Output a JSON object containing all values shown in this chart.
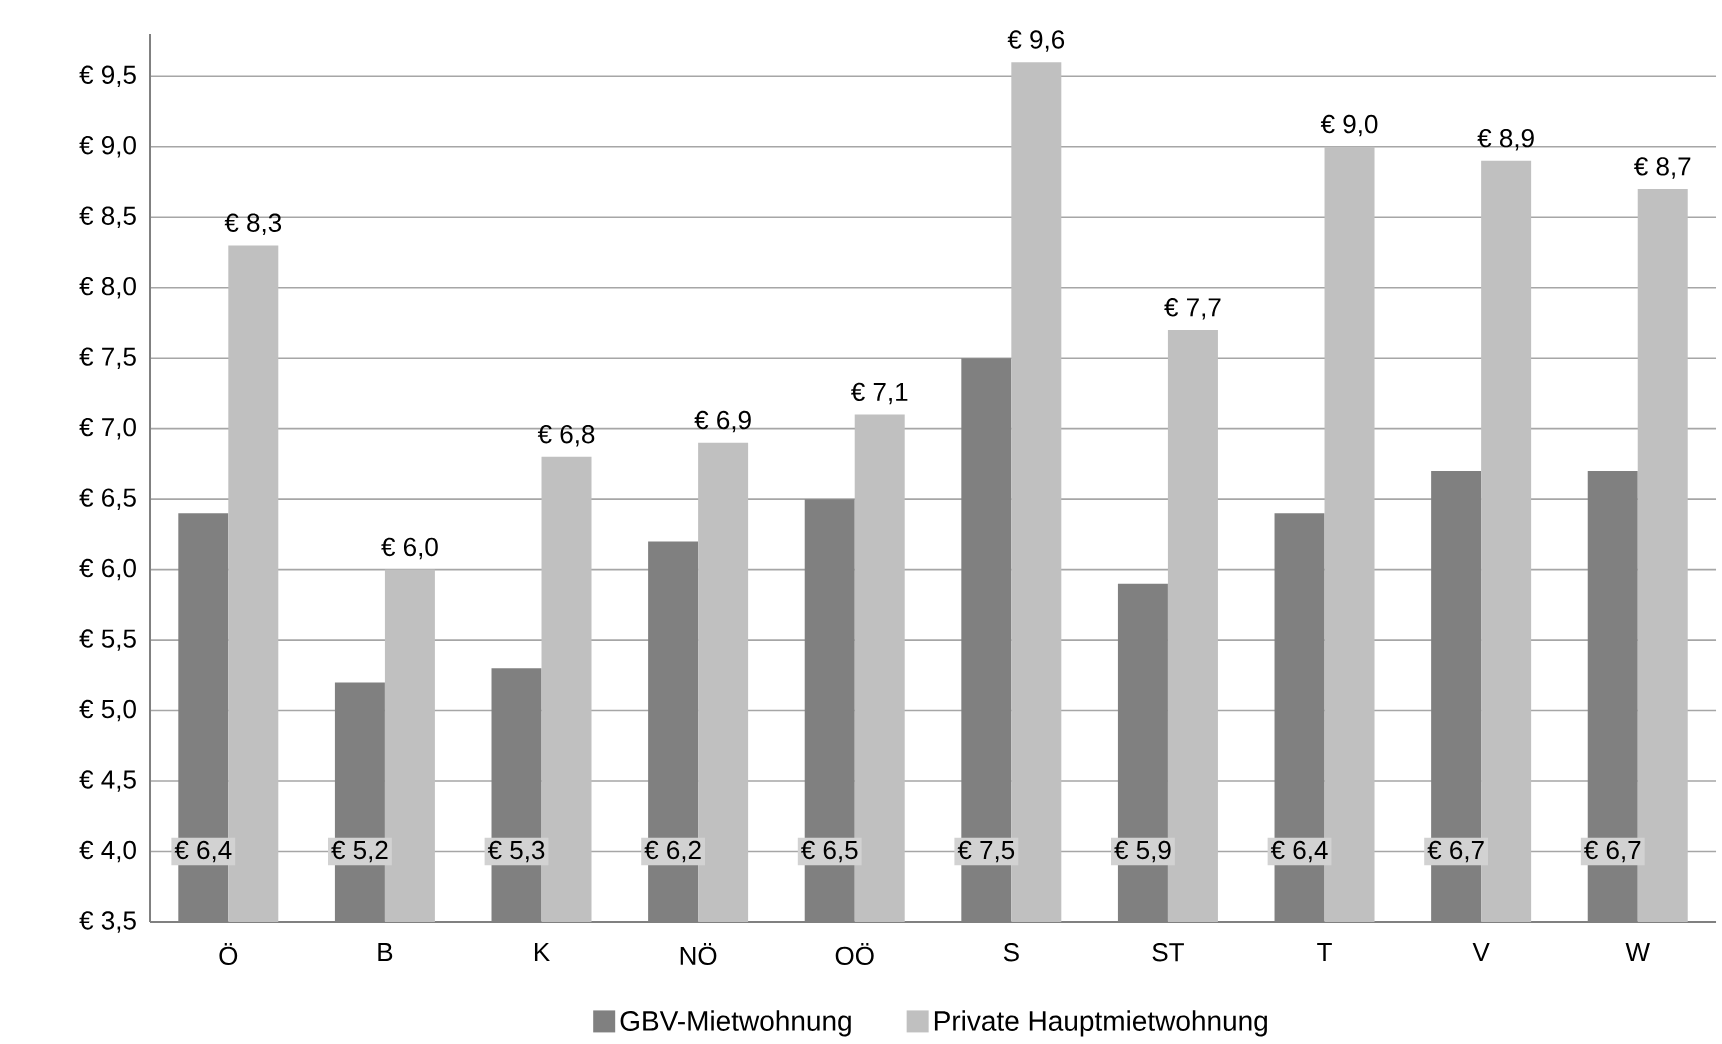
{
  "chart_data": {
    "type": "bar",
    "categories": [
      "Ö",
      "B",
      "K",
      "NÖ",
      "OÖ",
      "S",
      "ST",
      "T",
      "V",
      "W"
    ],
    "series": [
      {
        "name": "GBV-Mietwohnung",
        "color": "#808080",
        "values": [
          6.4,
          5.2,
          5.3,
          6.2,
          6.5,
          7.5,
          5.9,
          6.4,
          6.7,
          6.7
        ],
        "value_labels": [
          "€ 6,4",
          "€ 5,2",
          "€ 5,3",
          "€ 6,2",
          "€ 6,5",
          "€ 7,5",
          "€ 5,9",
          "€ 6,4",
          "€ 6,7",
          "€ 6,7"
        ]
      },
      {
        "name": "Private Hauptmietwohnung",
        "color": "#c0c0c0",
        "values": [
          8.3,
          6.0,
          6.8,
          6.9,
          7.1,
          9.6,
          7.7,
          9.0,
          8.9,
          8.7
        ],
        "value_labels": [
          "€ 8,3",
          "€ 6,0",
          "€ 6,8",
          "€ 6,9",
          "€ 7,1",
          "€ 9,6",
          "€ 7,7",
          "€ 9,0",
          "€ 8,9",
          "€ 8,7"
        ]
      }
    ],
    "ylim": [
      3.5,
      9.8
    ],
    "yticks": [
      {
        "value": 3.5,
        "label": "€ 3,5"
      },
      {
        "value": 4.0,
        "label": "€ 4,0"
      },
      {
        "value": 4.5,
        "label": "€ 4,5"
      },
      {
        "value": 5.0,
        "label": "€ 5,0"
      },
      {
        "value": 5.5,
        "label": "€ 5,5"
      },
      {
        "value": 6.0,
        "label": "€ 6,0"
      },
      {
        "value": 6.5,
        "label": "€ 6,5"
      },
      {
        "value": 7.0,
        "label": "€ 7,0"
      },
      {
        "value": 7.5,
        "label": "€ 7,5"
      },
      {
        "value": 8.0,
        "label": "€ 8,0"
      },
      {
        "value": 8.5,
        "label": "€ 8,5"
      },
      {
        "value": 9.0,
        "label": "€ 9,0"
      },
      {
        "value": 9.5,
        "label": "€ 9,5"
      }
    ],
    "grid": "y",
    "legend": "bottom"
  }
}
